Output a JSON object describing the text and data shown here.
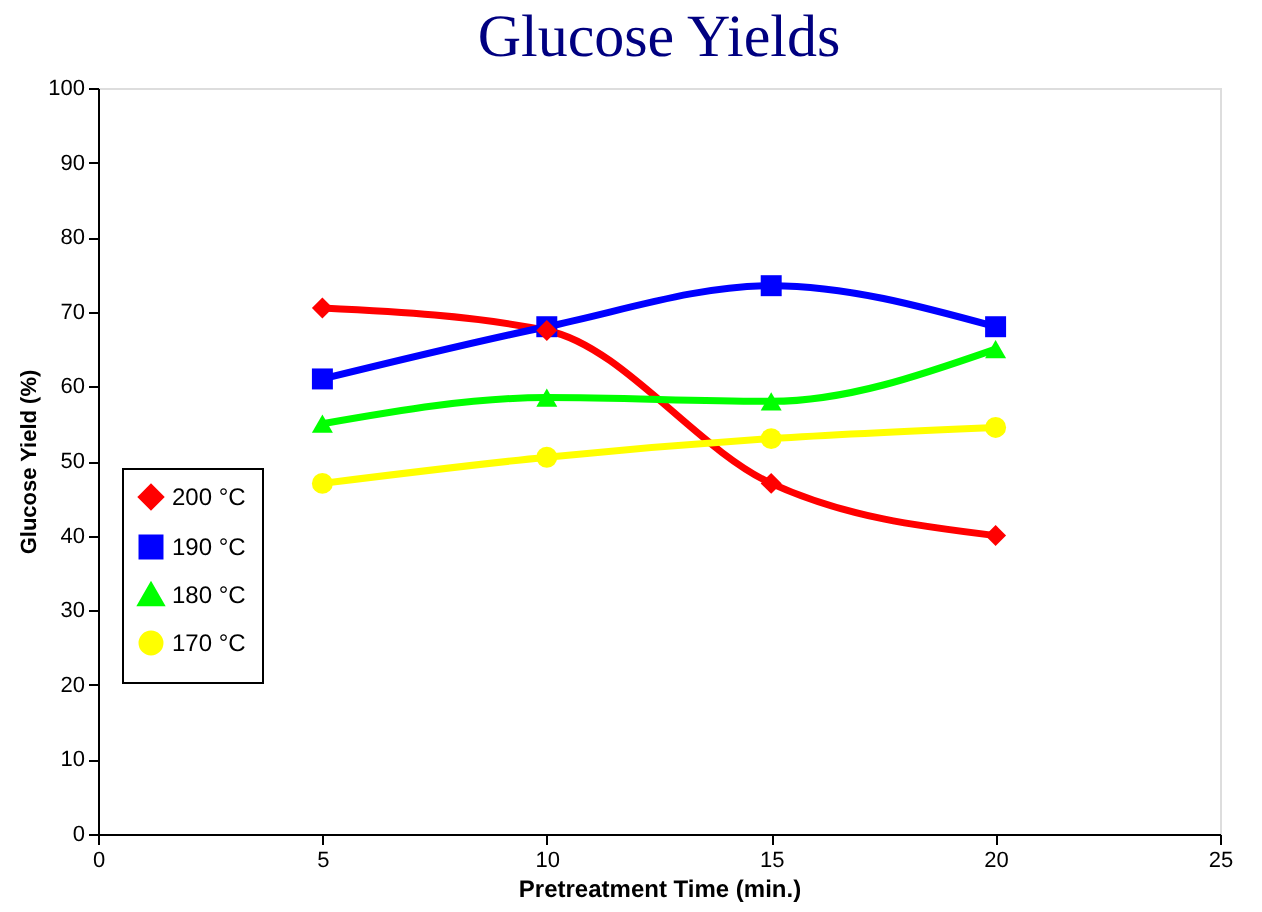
{
  "chart_data": {
    "type": "line",
    "title": "Glucose Yields",
    "xlabel": "Pretreatment Time (min.)",
    "ylabel": "Glucose Yield (%)",
    "x": [
      5,
      10,
      15,
      20
    ],
    "series": [
      {
        "name": "200 °C",
        "color": "#ff0000",
        "marker": "diamond",
        "values": [
          70.5,
          67.5,
          47,
          40
        ]
      },
      {
        "name": "190 °C",
        "color": "#0000ff",
        "marker": "square",
        "values": [
          61,
          68,
          73.5,
          68
        ]
      },
      {
        "name": "180 °C",
        "color": "#00ff00",
        "marker": "triangle",
        "values": [
          55,
          58.5,
          58,
          65
        ]
      },
      {
        "name": "170 °C",
        "color": "#ffff00",
        "marker": "circle",
        "values": [
          47,
          50.5,
          53,
          54.5
        ]
      }
    ],
    "xlim": [
      0,
      25
    ],
    "xticks": [
      0,
      5,
      10,
      15,
      20,
      25
    ],
    "ylim": [
      0,
      100
    ],
    "yticks": [
      0,
      10,
      20,
      30,
      40,
      50,
      60,
      70,
      80,
      90,
      100
    ],
    "grid": false,
    "legend": "left",
    "line_style": "solid"
  }
}
